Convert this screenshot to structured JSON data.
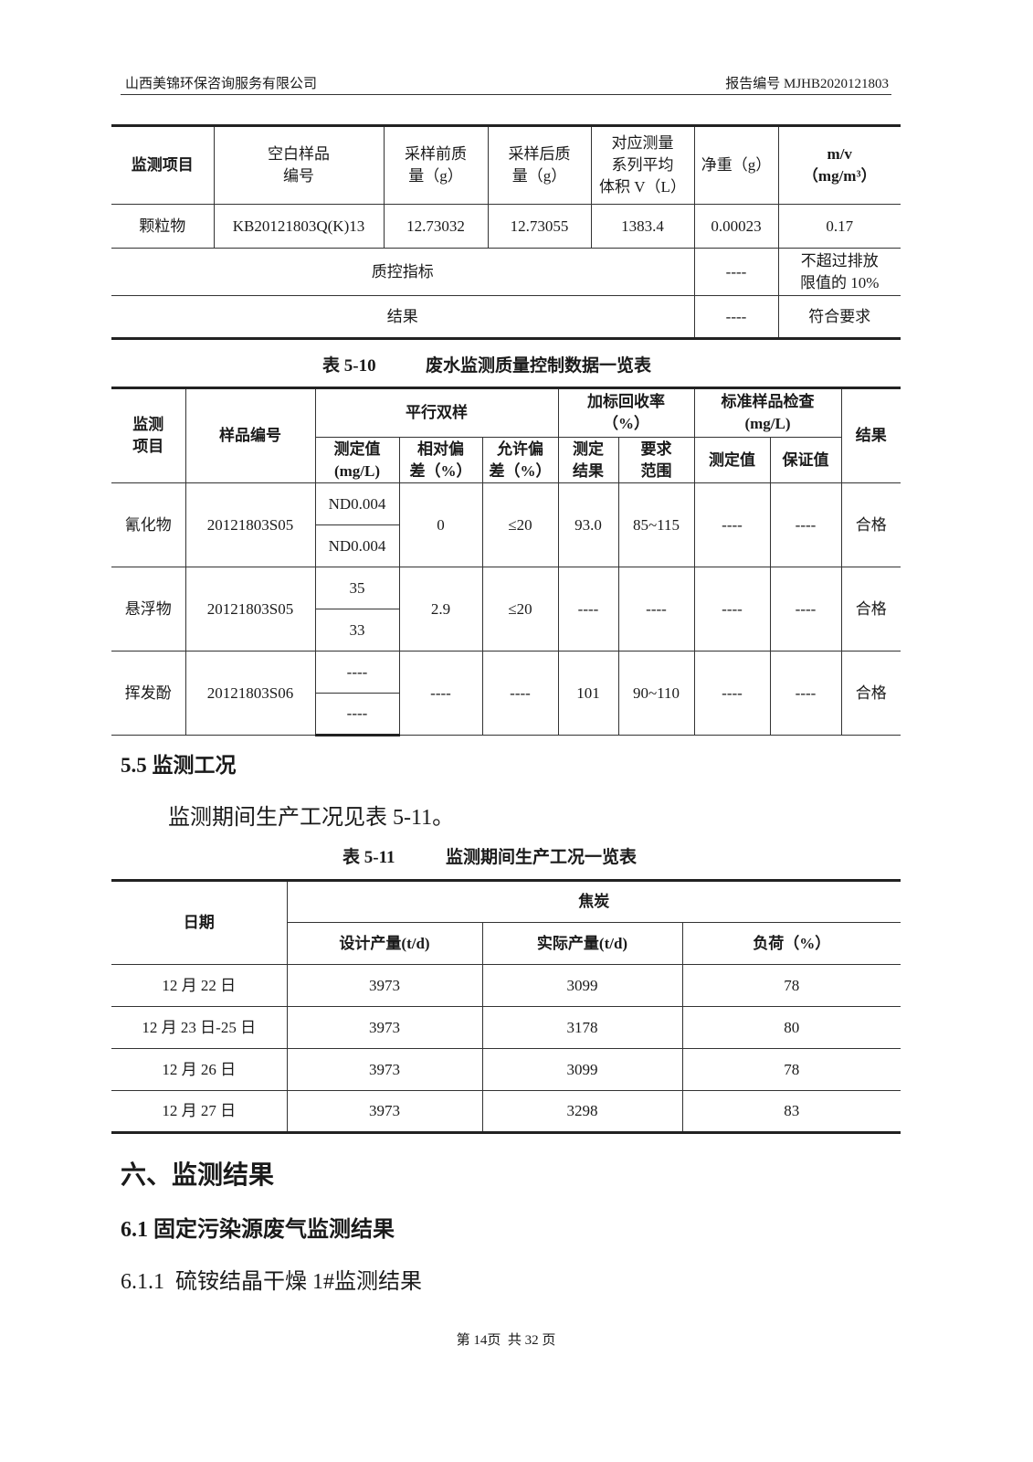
{
  "header": {
    "company": "山西美锦环保咨询服务有限公司",
    "report_no": "报告编号 MJHB2020121803"
  },
  "table1": {
    "headers": [
      "监测项目",
      "空白样品\n编号",
      "采样前质\n量（g）",
      "采样后质\n量（g）",
      "对应测量\n系列平均\n体积 V（L）",
      "净重（g）",
      "m/v\n（mg/m³）"
    ],
    "row": [
      "颗粒物",
      "KB20121803Q(K)13",
      "12.73032",
      "12.73055",
      "1383.4",
      "0.00023",
      "0.17"
    ],
    "qc": {
      "label": "质控指标",
      "value": "----",
      "limit": "不超过排放\n限值的 10%"
    },
    "result": {
      "label": "结果",
      "value": "----",
      "verdict": "符合要求"
    }
  },
  "table2": {
    "caption_no": "表 5-10",
    "caption": "废水监测质量控制数据一览表",
    "h": {
      "item": "监测\n项目",
      "sample": "样品编号",
      "parallel": "平行双样",
      "spike": "加标回收率\n（%）",
      "std": "标准样品检查\n(mg/L)",
      "result": "结果",
      "measured": "测定值\n(mg/L)",
      "rel_dev": "相对偏\n差（%）",
      "allow_dev": "允许偏\n差（%）",
      "spike_res": "测定\n结果",
      "spike_range": "要求\n范围",
      "std_meas": "测定值",
      "std_guar": "保证值"
    },
    "rows": [
      {
        "item": "氰化物",
        "sample": "20121803S05",
        "v1": "ND0.004",
        "v2": "ND0.004",
        "rel": "0",
        "allow": "≤20",
        "spike": "93.0",
        "range": "85~115",
        "sm": "----",
        "sg": "----",
        "res": "合格"
      },
      {
        "item": "悬浮物",
        "sample": "20121803S05",
        "v1": "35",
        "v2": "33",
        "rel": "2.9",
        "allow": "≤20",
        "spike": "----",
        "range": "----",
        "sm": "----",
        "sg": "----",
        "res": "合格"
      },
      {
        "item": "挥发酚",
        "sample": "20121803S06",
        "v1": "----",
        "v2": "----",
        "rel": "----",
        "allow": "----",
        "spike": "101",
        "range": "90~110",
        "sm": "----",
        "sg": "----",
        "res": "合格"
      }
    ]
  },
  "section55": {
    "title": "5.5 监测工况",
    "text": "监测期间生产工况见表 5-11。"
  },
  "table3": {
    "caption_no": "表 5-11",
    "caption": "监测期间生产工况一览表",
    "h": {
      "date": "日期",
      "product": "焦炭",
      "design": "设计产量(t/d)",
      "actual": "实际产量(t/d)",
      "load": "负荷（%）"
    },
    "rows": [
      {
        "date": "12 月 22 日",
        "design": "3973",
        "actual": "3099",
        "load": "78"
      },
      {
        "date": "12 月 23 日-25 日",
        "design": "3973",
        "actual": "3178",
        "load": "80"
      },
      {
        "date": "12 月 26 日",
        "design": "3973",
        "actual": "3099",
        "load": "78"
      },
      {
        "date": "12 月 27 日",
        "design": "3973",
        "actual": "3298",
        "load": "83"
      }
    ]
  },
  "section6": {
    "title": "六、监测结果",
    "sub": "6.1 固定污染源废气监测结果",
    "subsub": "6.1.1  硫铵结晶干燥 1#监测结果"
  },
  "footer": {
    "page": "第 14页  共 32 页"
  }
}
